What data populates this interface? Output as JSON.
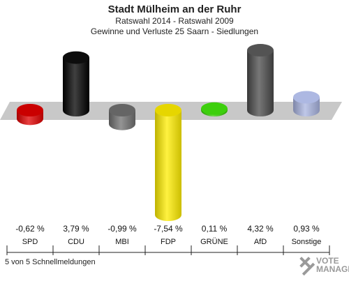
{
  "header": {
    "title": "Stadt Mülheim an der Ruhr",
    "subtitle1": "Ratswahl 2014 - Ratswahl 2009",
    "subtitle2": "Gewinne und Verluste 25 Saarn - Siedlungen"
  },
  "footer": {
    "text": "5 von 5 Schnellmeldungen"
  },
  "logo": {
    "line1": "VOTE",
    "line2": "MANAGER"
  },
  "chart_data": {
    "type": "bar",
    "title": "Stadt Mülheim an der Ruhr",
    "subtitle": "Ratswahl 2014 - Ratswahl 2009 / Gewinne und Verluste 25 Saarn - Siedlungen",
    "categories": [
      "SPD",
      "CDU",
      "MBI",
      "FDP",
      "GRÜNE",
      "AfD",
      "Sonstige"
    ],
    "values": [
      -0.62,
      3.79,
      -0.99,
      -7.54,
      0.11,
      4.32,
      0.93
    ],
    "value_labels": [
      "-0,62 %",
      "3,79 %",
      "-0,99 %",
      "-7,54 %",
      "0,11 %",
      "4,32 %",
      "0,93 %"
    ],
    "colors": [
      "#e00000",
      "#000000",
      "#707070",
      "#ffee00",
      "#33cc00",
      "#4a4a4a",
      "#a9b4e0"
    ],
    "unit": "%",
    "baseline_color": "#c8c8c8",
    "grid": false
  }
}
